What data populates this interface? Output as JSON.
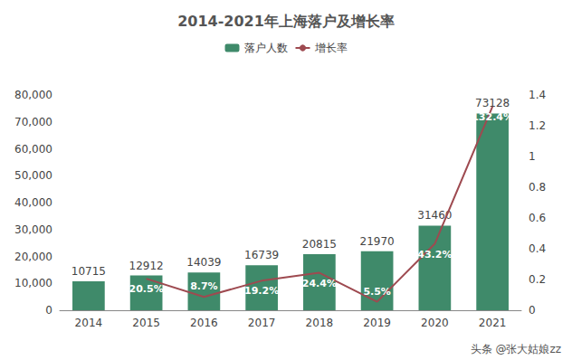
{
  "chart_data": {
    "type": "bar",
    "title": "2014-2021年上海落户及增长率",
    "categories": [
      "2014",
      "2015",
      "2016",
      "2017",
      "2018",
      "2019",
      "2020",
      "2021"
    ],
    "series": [
      {
        "name": "落户人数",
        "type": "bar",
        "color": "#3f8a6a",
        "values": [
          10715,
          12912,
          14039,
          16739,
          20815,
          21970,
          31460,
          73128
        ],
        "data_labels": true
      },
      {
        "name": "增长率",
        "type": "line",
        "axis": "y2",
        "color": "#9e4a50",
        "marker": "none",
        "values": [
          null,
          0.205,
          0.087,
          0.192,
          0.244,
          0.055,
          0.432,
          1.324
        ],
        "value_labels": [
          null,
          "20.5%",
          "8.7%",
          "19.2%",
          "24.4%",
          "5.5%",
          "43.2%",
          "132.4%"
        ],
        "data_labels": true
      }
    ],
    "ylim": [
      0,
      80000
    ],
    "yticks": [
      0,
      10000,
      20000,
      30000,
      40000,
      50000,
      60000,
      70000,
      80000
    ],
    "y2lim": [
      0,
      1.4
    ],
    "y2ticks": [
      0,
      0.2,
      0.4,
      0.6,
      0.8,
      1,
      1.2,
      1.4
    ],
    "grid": false,
    "legend": "top",
    "annotations": [
      "头条 @张大姑娘zz"
    ]
  }
}
